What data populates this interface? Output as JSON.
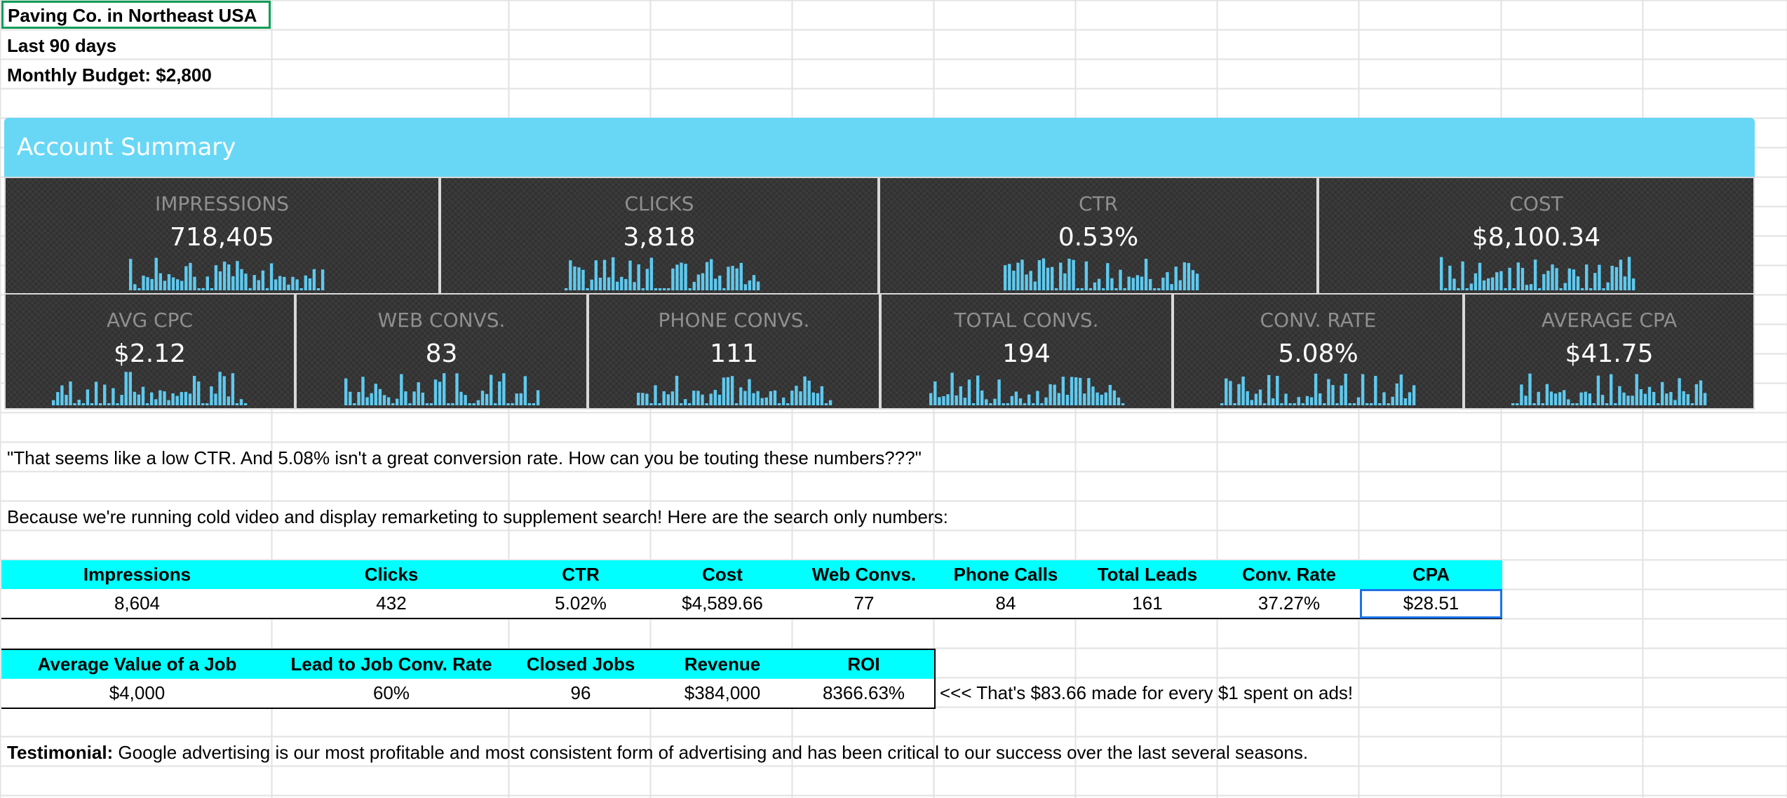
{
  "header": {
    "title": "Paving Co. in Northeast USA",
    "period": "Last 90 days",
    "budget": "Monthly Budget: $2,800"
  },
  "summary": {
    "title": "Account Summary",
    "accent_color": "#68d7f5",
    "tile_bg": "#363636",
    "bar_color": "#5fc9ee",
    "metrics_row1": [
      {
        "label": "IMPRESSIONS",
        "value": "718,405"
      },
      {
        "label": "CLICKS",
        "value": "3,818"
      },
      {
        "label": "CTR",
        "value": "0.53%"
      },
      {
        "label": "COST",
        "value": "$8,100.34"
      }
    ],
    "metrics_row2": [
      {
        "label": "AVG CPC",
        "value": "$2.12"
      },
      {
        "label": "WEB CONVS.",
        "value": "83"
      },
      {
        "label": "PHONE CONVS.",
        "value": "111"
      },
      {
        "label": "TOTAL CONVS.",
        "value": "194"
      },
      {
        "label": "CONV. RATE",
        "value": "5.08%"
      },
      {
        "label": "AVERAGE CPA",
        "value": "$41.75"
      }
    ]
  },
  "quote": "\"That seems like a low CTR.  And 5.08% isn't a great conversion rate.  How can you be touting these numbers???\"",
  "explanation": "Because we're running cold video and display remarketing to supplement search!  Here are the search only numbers:",
  "search_table": {
    "headers": [
      "Impressions",
      "Clicks",
      "CTR",
      "Cost",
      "Web Convs.",
      "Phone Calls",
      "Total Leads",
      "Conv. Rate",
      "CPA"
    ],
    "row": [
      "8,604",
      "432",
      "5.02%",
      "$4,589.66",
      "77",
      "84",
      "161",
      "37.27%",
      "$28.51"
    ]
  },
  "roi_table": {
    "headers": [
      "Average Value of a Job",
      "Lead to Job Conv. Rate",
      "Closed Jobs",
      "Revenue",
      "ROI"
    ],
    "row": [
      "$4,000",
      "60%",
      "96",
      "$384,000",
      "8366.63%"
    ],
    "note": "<<< That's $83.66 made for every $1 spent on ads!"
  },
  "testimonial": {
    "label": "Testimonial:",
    "text": " Google advertising is our most profitable and most consistent form of advertising and has been critical to our success over the last several seasons."
  },
  "colors": {
    "table_header": "#00ffff",
    "selection": "#1a73e8",
    "active_cell_border": "#0f9d58",
    "gridline": "#e2e2e2"
  }
}
